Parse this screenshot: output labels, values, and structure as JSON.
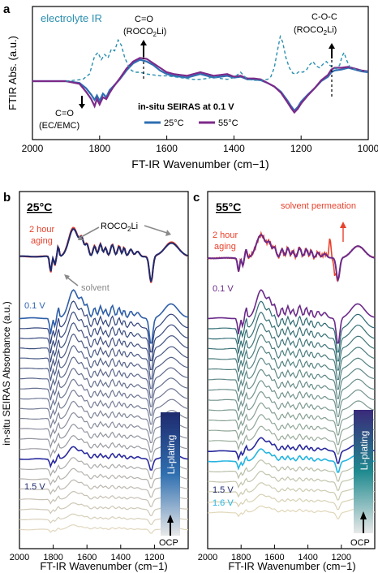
{
  "chart_data": [
    {
      "panel": "a",
      "type": "line",
      "xlabel": "FT-IR Wavenumber (cm−1)",
      "ylabel": "FTIR Abs. (a.u.)",
      "xlim": [
        2000,
        1000
      ],
      "x_reversed": true,
      "x_ticks": [
        "2000",
        "1800",
        "1600",
        "1400",
        "1200",
        "1000"
      ],
      "grid": false,
      "legend_title": "in-situ SEIRAS at 0.1 V",
      "legend_position": "bottom-center",
      "annotations": {
        "electrolyte": "electrolyte IR",
        "co_ec": "C=O",
        "co_ec_sub": "(EC/EMC)",
        "co_roco": "C=O",
        "co_roco_sub": "(ROCO",
        "coc": "C-O-C",
        "coc_sub": "(ROCO",
        "sub2": "2",
        "li": "Li)"
      },
      "series": [
        {
          "name": "25°C",
          "color": "#2e6fb2",
          "style": "solid",
          "x": [
            2000,
            1900,
            1860,
            1840,
            1825,
            1815,
            1808,
            1800,
            1790,
            1780,
            1770,
            1760,
            1740,
            1720,
            1700,
            1680,
            1660,
            1640,
            1620,
            1600,
            1580,
            1560,
            1540,
            1520,
            1500,
            1480,
            1460,
            1440,
            1420,
            1400,
            1380,
            1360,
            1340,
            1320,
            1300,
            1280,
            1260,
            1240,
            1230,
            1220,
            1210,
            1200,
            1180,
            1160,
            1140,
            1120,
            1110,
            1100,
            1080,
            1060,
            1040,
            1020,
            1000
          ],
          "y": [
            0,
            0,
            -0.2,
            -0.8,
            -1.5,
            -2.1,
            -1.6,
            -2.2,
            -1.4,
            -1.8,
            -1.0,
            -0.6,
            0.2,
            1.2,
            2.0,
            2.4,
            2.2,
            1.8,
            1.2,
            0.8,
            0.6,
            0.5,
            0.4,
            0.6,
            0.8,
            0.6,
            0.4,
            0.5,
            0.6,
            0.4,
            0.5,
            0.2,
            0.2,
            0.1,
            -0.2,
            -0.6,
            -1.2,
            -2.2,
            -2.8,
            -3.3,
            -2.9,
            -2.3,
            -1.5,
            -0.8,
            0.0,
            0.5,
            1.0,
            1.2,
            1.3,
            1.5,
            1.3,
            1.1,
            1.0
          ]
        },
        {
          "name": "55°C",
          "color": "#7d2a8a",
          "style": "solid",
          "x": [
            2000,
            1900,
            1860,
            1840,
            1825,
            1815,
            1808,
            1800,
            1790,
            1780,
            1770,
            1760,
            1740,
            1720,
            1700,
            1680,
            1660,
            1640,
            1620,
            1600,
            1580,
            1560,
            1540,
            1520,
            1500,
            1480,
            1460,
            1440,
            1420,
            1400,
            1380,
            1360,
            1340,
            1320,
            1300,
            1280,
            1260,
            1240,
            1230,
            1220,
            1210,
            1200,
            1180,
            1160,
            1140,
            1120,
            1110,
            1100,
            1080,
            1060,
            1040,
            1020,
            1000
          ],
          "y": [
            0,
            0,
            -0.3,
            -1.2,
            -2.0,
            -2.8,
            -2.0,
            -2.6,
            -1.8,
            -2.0,
            -1.3,
            -0.7,
            0.3,
            1.4,
            2.2,
            2.6,
            2.5,
            2.0,
            1.5,
            1.0,
            0.8,
            0.7,
            0.6,
            0.8,
            1.0,
            0.8,
            0.6,
            0.7,
            0.8,
            0.5,
            0.6,
            0.3,
            0.3,
            0.2,
            -0.2,
            -0.6,
            -1.3,
            -2.4,
            -3.0,
            -3.5,
            -3.1,
            -2.5,
            -1.6,
            -0.8,
            0.1,
            0.7,
            1.3,
            1.5,
            1.5,
            1.6,
            1.4,
            1.2,
            1.1
          ]
        },
        {
          "name": "",
          "color": "#2a8fb0",
          "style": "dashed",
          "x": [
            1900,
            1850,
            1830,
            1815,
            1805,
            1795,
            1785,
            1775,
            1765,
            1755,
            1745,
            1735,
            1725,
            1715,
            1705,
            1695,
            1680,
            1660,
            1640,
            1620,
            1600,
            1580,
            1560,
            1540,
            1520,
            1500,
            1480,
            1460,
            1440,
            1420,
            1400,
            1380,
            1370,
            1360,
            1340,
            1320,
            1300,
            1290,
            1280,
            1270,
            1262,
            1255,
            1245,
            1235,
            1225,
            1215,
            1205,
            1195,
            1185,
            1175,
            1165,
            1155,
            1145,
            1135,
            1125,
            1115,
            1105,
            1095,
            1085,
            1078,
            1072,
            1065,
            1055,
            1045,
            1035,
            1020,
            1000
          ],
          "y": [
            0.0,
            0.2,
            0.8,
            2.8,
            3.2,
            2.4,
            3.0,
            2.6,
            3.6,
            3.4,
            4.6,
            4.0,
            2.6,
            1.8,
            1.2,
            1.0,
            1.0,
            0.8,
            0.7,
            0.6,
            0.6,
            0.5,
            0.4,
            0.3,
            0.2,
            0.2,
            0.3,
            0.5,
            0.3,
            0.2,
            0.4,
            1.0,
            0.6,
            0.2,
            0.1,
            0.1,
            0.2,
            0.5,
            1.5,
            3.5,
            5.0,
            4.4,
            2.6,
            1.5,
            0.9,
            0.8,
            1.1,
            1.0,
            1.2,
            1.8,
            2.2,
            1.7,
            1.5,
            1.9,
            2.2,
            1.8,
            1.5,
            1.4,
            1.8,
            2.8,
            3.2,
            2.4,
            1.6,
            1.4,
            1.3,
            1.2,
            1.1
          ]
        }
      ]
    },
    {
      "panel": "b",
      "type": "line",
      "title": "25°C",
      "xlabel": "FT-IR Wavenumber (cm−1)",
      "xlim": [
        2000,
        1000
      ],
      "x_reversed": true,
      "x_ticks": [
        "2000",
        "1800",
        "1600",
        "1400",
        "1200"
      ],
      "annotations": {
        "aging": "2 hour",
        "aging2": "aging",
        "roco": "ROCO",
        "roco_sub": "2",
        "roco_end": "Li",
        "solvent": "solvent",
        "v01": "0.1 V",
        "v15": "1.5 V",
        "liplating": "Li-plating",
        "ocp": "OCP"
      },
      "stack_count": 22,
      "stack_labels": {
        "0": "0.1 V",
        "14": "1.5 V"
      }
    },
    {
      "panel": "c",
      "type": "line",
      "title": "55°C",
      "xlabel": "FT-IR Wavenumber (cm−1)",
      "xlim": [
        2000,
        1000
      ],
      "x_reversed": true,
      "x_ticks": [
        "2000",
        "1800",
        "1600",
        "1400",
        "1200"
      ],
      "annotations": {
        "aging": "2 hour",
        "aging2": "aging",
        "permeation": "solvent permeation",
        "v01": "0.1 V",
        "v15": "1.5 V",
        "v16": "1.6 V",
        "liplating": "Li-plating",
        "ocp": "OCP"
      },
      "stack_count": 20,
      "stack_labels": {
        "0": "0.1 V",
        "13": "1.5 V",
        "14": "1.6 V"
      }
    }
  ],
  "shared": {
    "ylabel_bc": "in-situ SEIRAS Absorbance (a.u.)",
    "label_a": "a",
    "label_b": "b",
    "label_c": "c"
  },
  "colors": {
    "red": "#e8422d",
    "navy": "#1e2a6e",
    "purple": "#6b2a8a",
    "cyan": "#27b5e0",
    "blue_label": "#2f62b0",
    "gray": "#8a8a8a"
  }
}
